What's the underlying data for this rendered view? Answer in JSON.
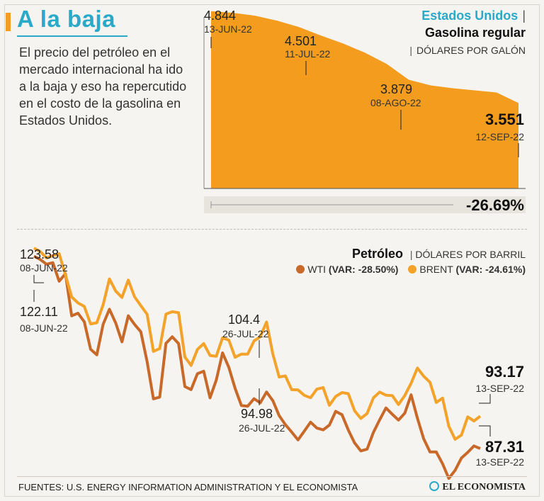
{
  "header": {
    "title": "A la baja",
    "intro": "El precio del petróleo en el mercado internacional ha ido a la baja y eso ha repercutido en el costo de la gasolina en Estados Unidos."
  },
  "colors": {
    "accent_blue": "#2aa9c9",
    "gasoline_orange": "#f39c1e",
    "wti": "#c8692a",
    "brent": "#f3a22a"
  },
  "chart_data": [
    {
      "id": "gasoline",
      "type": "area",
      "title_line1": "Estados Unidos",
      "title_line2": "Gasolina regular",
      "unit": "DÓLARES POR GALÓN",
      "x": [
        "13-JUN-22",
        "11-JUL-22",
        "08-AGO-22",
        "12-SEP-22"
      ],
      "values": [
        4.844,
        4.501,
        3.879,
        3.551
      ],
      "smooth_series": [
        4.844,
        4.82,
        4.78,
        4.71,
        4.62,
        4.501,
        4.39,
        4.26,
        4.1,
        3.879,
        3.8,
        3.76,
        3.73,
        3.7,
        3.551
      ],
      "ylim": [
        2.35,
        5.0
      ],
      "labels": [
        {
          "value": "4.844",
          "date": "13-JUN-22"
        },
        {
          "value": "4.501",
          "date": "11-JUL-22"
        },
        {
          "value": "3.879",
          "date": "08-AGO-22"
        },
        {
          "value": "3.551",
          "date": "12-SEP-22"
        }
      ],
      "change": "-26.69%"
    },
    {
      "id": "oil",
      "type": "line",
      "title": "Petróleo",
      "unit": "DÓLARES POR BARRIL",
      "ylim": [
        80,
        130
      ],
      "series": [
        {
          "name": "WTI",
          "var": "(VAR: -28.50%)",
          "values": [
            122.11,
            121.5,
            120.67,
            120.93,
            117.58,
            118.93,
            111.32,
            111.79,
            110.24,
            105.27,
            104.27,
            109.8,
            112.51,
            110.01,
            106.6,
            111.33,
            109.77,
            108.43,
            103.02,
            96.31,
            96.61,
            106.35,
            107.53,
            106.3,
            98.53,
            97.98,
            100.84,
            101.31,
            96.49,
            99.69,
            104.62,
            101.99,
            98.2,
            95.09,
            94.98,
            96.33,
            95.58,
            97.54,
            95.97,
            93.27,
            91.63,
            90.3,
            88.87,
            90.44,
            92.09,
            91.01,
            90.69,
            91.55,
            94.04,
            93.43,
            90.68,
            88.35,
            86.88,
            87.2,
            90.24,
            92.51,
            94.65,
            93.51,
            92.46,
            93.72,
            97.04,
            92.8,
            89.09,
            86.7,
            86.69,
            84.57,
            81.91,
            83.37,
            85.59,
            86.61,
            87.78,
            87.31
          ]
        },
        {
          "name": "BRENT",
          "var": "(VAR: -24.61%)",
          "values": [
            123.58,
            122.93,
            121.79,
            122.22,
            122.56,
            118.75,
            114.74,
            113.65,
            113.03,
            109.86,
            110.06,
            113.32,
            118.0,
            115.8,
            114.65,
            117.8,
            114.76,
            113.17,
            111.6,
            104.9,
            105.4,
            111.63,
            112.06,
            111.9,
            103.87,
            102.35,
            105.24,
            106.3,
            104.16,
            104.0,
            107.35,
            106.92,
            103.82,
            104.4,
            104.4,
            106.77,
            107.52,
            110.2,
            104.41,
            100.25,
            100.45,
            97.96,
            97.92,
            96.95,
            96.5,
            98.05,
            98.34,
            95.14,
            96.73,
            97.44,
            97.25,
            94.17,
            92.76,
            93.65,
            96.49,
            97.53,
            96.96,
            96.9,
            95.28,
            96.91,
            99.13,
            101.87,
            100.41,
            99.31,
            95.64,
            96.44,
            91.34,
            88.99,
            89.75,
            93.04,
            92.29,
            93.17
          ]
        }
      ],
      "labels": {
        "brent_start": {
          "value": "123.58",
          "date": "08-JUN-22"
        },
        "wti_start": {
          "value": "122.11",
          "date": "08-JUN-22"
        },
        "brent_mid": {
          "value": "104.4",
          "date": "26-JUL-22"
        },
        "wti_mid": {
          "value": "94.98",
          "date": "26-JUL-22"
        },
        "brent_end": {
          "value": "93.17",
          "date": "13-SEP-22"
        },
        "wti_end": {
          "value": "87.31",
          "date": "13-SEP-22"
        }
      }
    }
  ],
  "footer": {
    "sources": "FUENTES: U.S. ENERGY INFORMATION ADMINISTRATION Y EL ECONOMISTA",
    "logo": "EL ECONOMISTA"
  }
}
